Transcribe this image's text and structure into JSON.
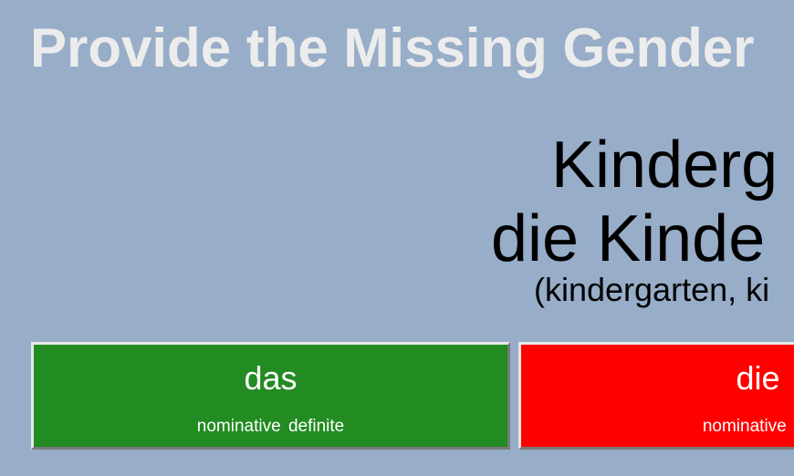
{
  "header": {
    "title": "Provide the Missing Gender"
  },
  "word": {
    "singular": "Kinderg",
    "plural": "die Kinde",
    "translation": "(kindergarten, ki"
  },
  "answers": [
    {
      "article": "das",
      "case": "nominative definite",
      "color": "#228b22"
    },
    {
      "article": "die",
      "case": "nominative de",
      "color": "#ff0000"
    }
  ]
}
